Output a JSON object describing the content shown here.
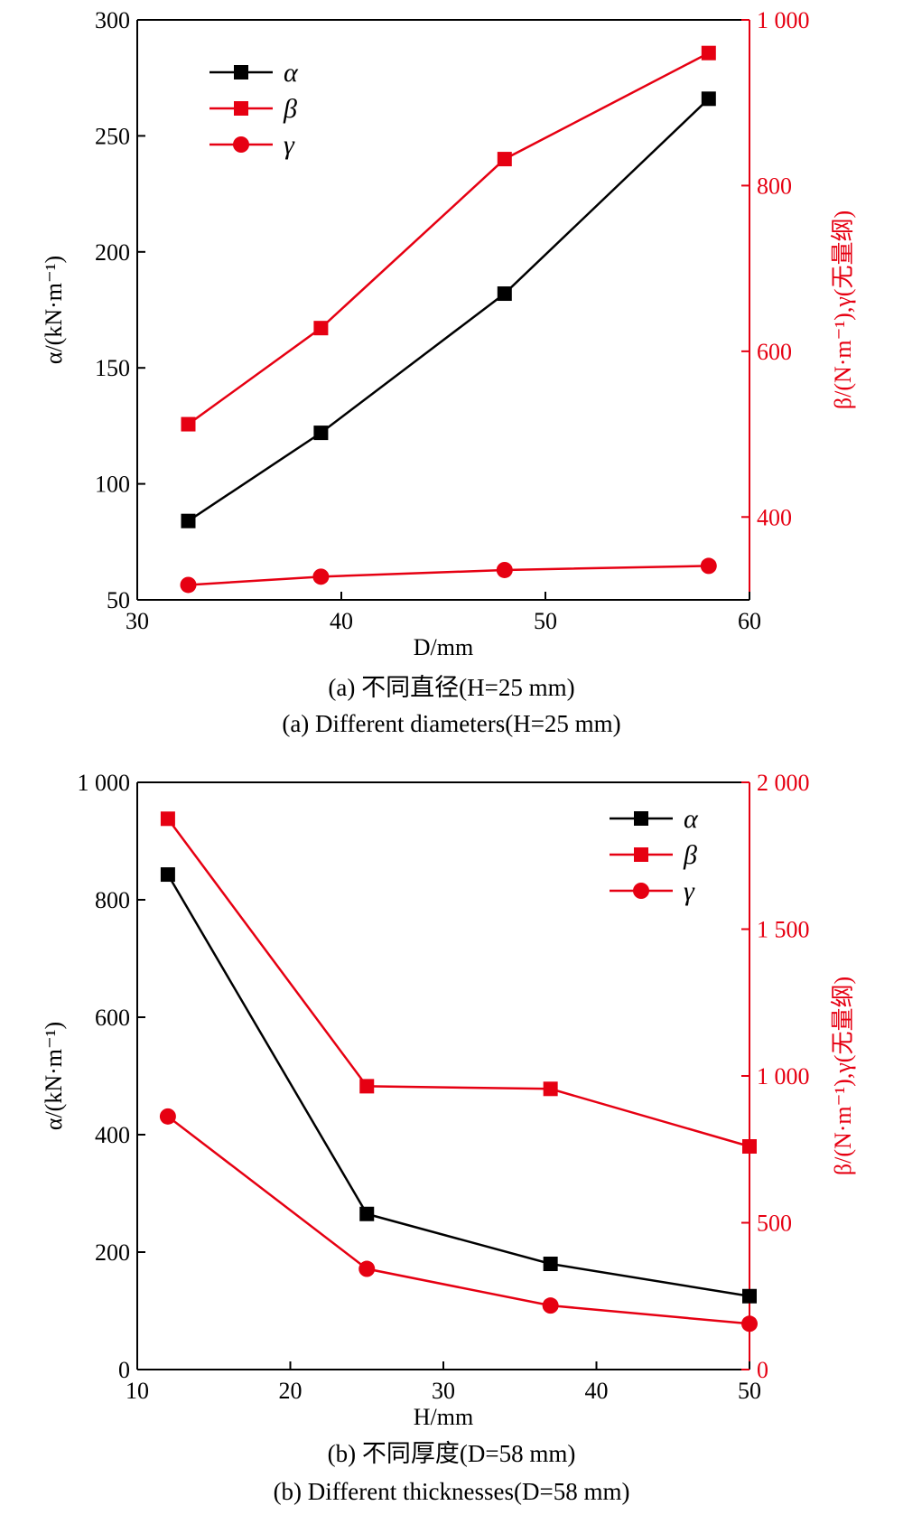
{
  "colors": {
    "black": "#000000",
    "red": "#e60012"
  },
  "chart_data": [
    {
      "type": "line",
      "caption_cn": "(a) 不同直径(H=25 mm)",
      "caption_en": "(a) Different diameters(H=25 mm)",
      "xlabel": "D/mm",
      "ylabel_left": "α/(kN·m⁻¹)",
      "ylabel_right": "β/(N·m⁻¹),γ(无量纲)",
      "xlim": [
        30,
        60
      ],
      "ylim_left": [
        50,
        300
      ],
      "ylim_right": [
        300,
        1000
      ],
      "x_ticks": [
        "30",
        "40",
        "50",
        "60"
      ],
      "y_left_ticks": [
        "50",
        "100",
        "150",
        "200",
        "250",
        "300"
      ],
      "y_right_ticks": [
        "400",
        "600",
        "800",
        "1 000"
      ],
      "legend_position": "top-left",
      "series": [
        {
          "name": "α",
          "axis": "left",
          "marker": "square",
          "color": "#000000",
          "x": [
            32.5,
            39,
            48,
            58
          ],
          "y": [
            84,
            122,
            182,
            266
          ]
        },
        {
          "name": "β",
          "axis": "right",
          "marker": "square",
          "color": "#e60012",
          "x": [
            32.5,
            39,
            48,
            58
          ],
          "y": [
            512,
            628,
            832,
            960
          ]
        },
        {
          "name": "γ",
          "axis": "right",
          "marker": "circle",
          "color": "#e60012",
          "x": [
            32.5,
            39,
            48,
            58
          ],
          "y": [
            318,
            328,
            336,
            341
          ]
        }
      ]
    },
    {
      "type": "line",
      "caption_cn": "(b) 不同厚度(D=58 mm)",
      "caption_en": "(b) Different thicknesses(D=58 mm)",
      "xlabel": "H/mm",
      "ylabel_left": "α/(kN·m⁻¹)",
      "ylabel_right": "β/(N·m⁻¹),γ(无量纲)",
      "xlim": [
        10,
        50
      ],
      "ylim_left": [
        0,
        1000
      ],
      "ylim_right": [
        0,
        2000
      ],
      "x_ticks": [
        "10",
        "20",
        "30",
        "40",
        "50"
      ],
      "y_left_ticks": [
        "0",
        "200",
        "400",
        "600",
        "800",
        "1 000"
      ],
      "y_right_ticks": [
        "0",
        "500",
        "1 000",
        "1 500",
        "2 000"
      ],
      "legend_position": "top-right",
      "series": [
        {
          "name": "α",
          "axis": "left",
          "marker": "square",
          "color": "#000000",
          "x": [
            12,
            25,
            37,
            50
          ],
          "y": [
            843,
            265,
            180,
            125
          ]
        },
        {
          "name": "β",
          "axis": "right",
          "marker": "square",
          "color": "#e60012",
          "x": [
            12,
            25,
            37,
            50
          ],
          "y": [
            1876,
            965,
            956,
            760
          ]
        },
        {
          "name": "γ",
          "axis": "right",
          "marker": "circle",
          "color": "#e60012",
          "x": [
            12,
            25,
            37,
            50
          ],
          "y": [
            862,
            343,
            218,
            156
          ]
        }
      ]
    }
  ]
}
